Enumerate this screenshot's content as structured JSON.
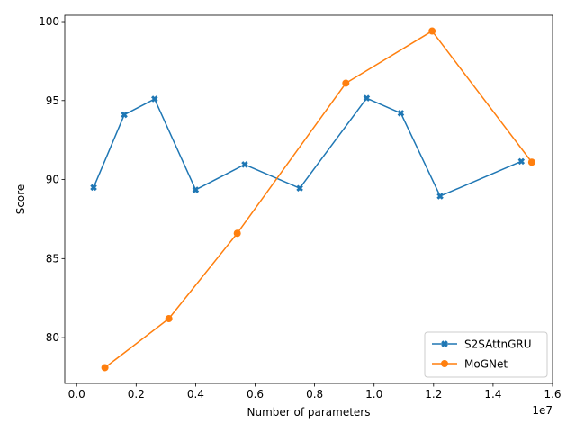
{
  "chart_data": {
    "type": "line",
    "xlabel": "Number of parameters",
    "ylabel": "Score",
    "x_offset_text": "1e7",
    "xlim": [
      -0.04,
      1.6
    ],
    "ylim": [
      77.1,
      100.4
    ],
    "x_ticks": [
      0.0,
      0.2,
      0.4,
      0.6,
      0.8,
      1.0,
      1.2,
      1.4,
      1.6
    ],
    "x_tick_labels": [
      "0.0",
      "0.2",
      "0.4",
      "0.6",
      "0.8",
      "1.0",
      "1.2",
      "1.4",
      "1.6"
    ],
    "y_ticks": [
      80,
      85,
      90,
      95,
      100
    ],
    "y_tick_labels": [
      "80",
      "85",
      "90",
      "95",
      "100"
    ],
    "grid": false,
    "legend_position": "lower-right",
    "series": [
      {
        "name": "S2SAttnGRU",
        "color": "#1f77b4",
        "marker": "X",
        "x": [
          0.057,
          0.16,
          0.262,
          0.4,
          0.565,
          0.75,
          0.975,
          1.09,
          1.222,
          1.495
        ],
        "y": [
          89.5,
          94.1,
          95.1,
          89.35,
          90.95,
          89.45,
          95.15,
          94.2,
          88.95,
          91.15
        ]
      },
      {
        "name": "MoGNet",
        "color": "#ff7f0e",
        "marker": "o",
        "x": [
          0.095,
          0.31,
          0.54,
          0.905,
          1.195,
          1.53
        ],
        "y": [
          78.1,
          81.2,
          86.6,
          96.1,
          99.4,
          91.1
        ]
      }
    ]
  }
}
